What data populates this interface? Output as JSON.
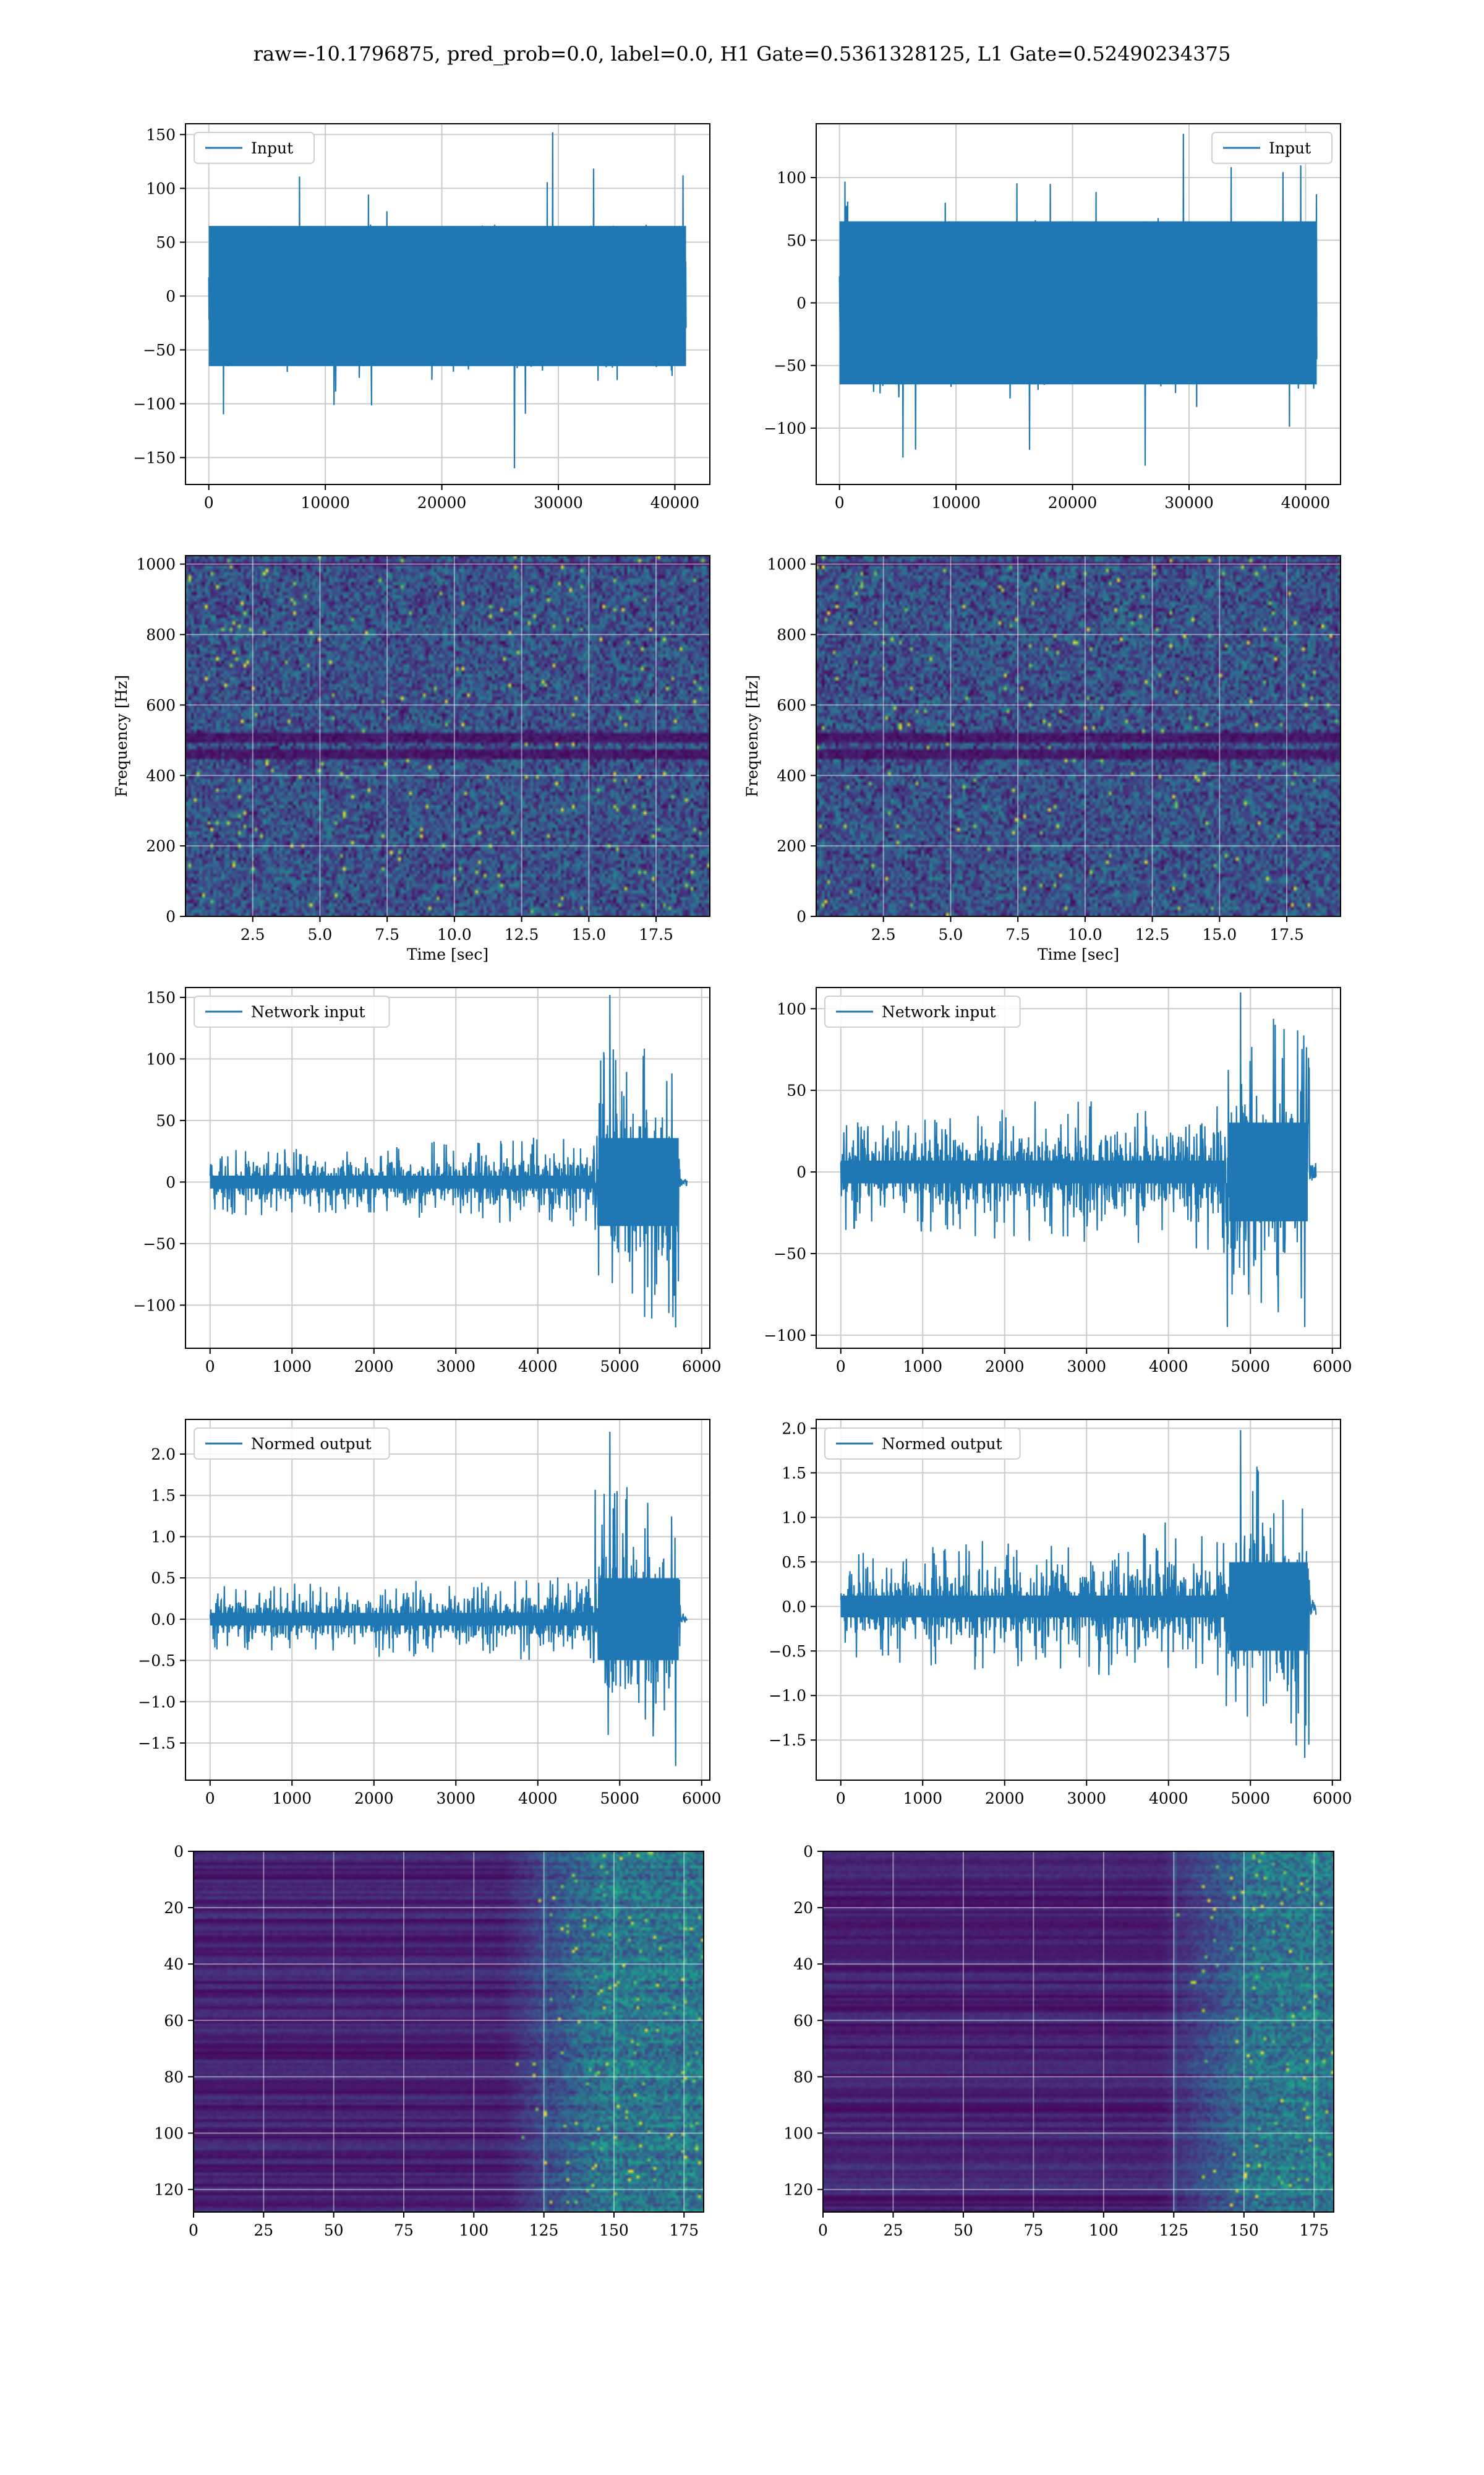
{
  "figure": {
    "title": "raw=-10.1796875, pred_prob=0.0, label=0.0, H1 Gate=0.5361328125, L1 Gate=0.52490234375"
  },
  "colors": {
    "series": "#1f77b4",
    "grid": "#cccccc",
    "viridis_dark": "#440154",
    "viridis_mid": "#21918c",
    "viridis_bright": "#fde725"
  },
  "chart_data": [
    {
      "type": "line",
      "row": 1,
      "col": 1,
      "series": [
        {
          "name": "Input"
        }
      ],
      "legend": "upper-left",
      "xlim": [
        -2000,
        43000
      ],
      "ylim": [
        -175,
        160
      ],
      "xticks": [
        0,
        10000,
        20000,
        30000,
        40000
      ],
      "yticks": [
        -150,
        -100,
        -50,
        0,
        50,
        100,
        150
      ],
      "signal": {
        "n": 40960,
        "band": [
          -70,
          70
        ],
        "max": 152,
        "min": -160,
        "envelope": "constant"
      },
      "grid": true,
      "xlabel": "",
      "ylabel": ""
    },
    {
      "type": "line",
      "row": 1,
      "col": 2,
      "series": [
        {
          "name": "Input"
        }
      ],
      "legend": "upper-right",
      "xlim": [
        -2000,
        43000
      ],
      "ylim": [
        -145,
        143
      ],
      "xticks": [
        0,
        10000,
        20000,
        30000,
        40000
      ],
      "yticks": [
        -100,
        -50,
        0,
        50,
        100
      ],
      "signal": {
        "n": 40960,
        "band": [
          -70,
          70
        ],
        "max": 135,
        "min": -130,
        "envelope": "constant"
      },
      "grid": true,
      "xlabel": "",
      "ylabel": ""
    },
    {
      "type": "heatmap",
      "row": 2,
      "col": 1,
      "xlim": [
        0,
        19.5
      ],
      "ylim": [
        0,
        1024
      ],
      "xticks": [
        2.5,
        5.0,
        7.5,
        10.0,
        12.5,
        15.0,
        17.5
      ],
      "yticks": [
        0,
        200,
        400,
        600,
        800,
        1000
      ],
      "xlabel": "Time [sec]",
      "ylabel": "Frequency [Hz]",
      "colormap": "viridis",
      "grid": true,
      "dark_bands_hz": [
        [
          455,
          480
        ],
        [
          500,
          525
        ],
        [
          1000,
          1010
        ]
      ]
    },
    {
      "type": "heatmap",
      "row": 2,
      "col": 2,
      "xlim": [
        0,
        19.5
      ],
      "ylim": [
        0,
        1024
      ],
      "xticks": [
        2.5,
        5.0,
        7.5,
        10.0,
        12.5,
        15.0,
        17.5
      ],
      "yticks": [
        0,
        200,
        400,
        600,
        800,
        1000
      ],
      "xlabel": "Time [sec]",
      "ylabel": "Frequency [Hz]",
      "colormap": "viridis",
      "grid": true,
      "dark_bands_hz": [
        [
          455,
          480
        ],
        [
          500,
          525
        ],
        [
          1000,
          1010
        ]
      ]
    },
    {
      "type": "line",
      "row": 3,
      "col": 1,
      "series": [
        {
          "name": "Network input"
        }
      ],
      "legend": "upper-left",
      "xlim": [
        -300,
        6100
      ],
      "ylim": [
        -135,
        158
      ],
      "xticks": [
        0,
        1000,
        2000,
        3000,
        4000,
        5000,
        6000
      ],
      "yticks": [
        -100,
        -50,
        0,
        50,
        100,
        150
      ],
      "signal": {
        "n": 5800,
        "burst_start": 4700,
        "burst_end": 5740,
        "base": 15,
        "burst": 65,
        "max": 152,
        "min": -118,
        "tail_end": 5820
      },
      "grid": true,
      "xlabel": "",
      "ylabel": ""
    },
    {
      "type": "line",
      "row": 3,
      "col": 2,
      "series": [
        {
          "name": "Network input"
        }
      ],
      "legend": "upper-left",
      "xlim": [
        -300,
        6100
      ],
      "ylim": [
        -108,
        113
      ],
      "xticks": [
        0,
        1000,
        2000,
        3000,
        4000,
        5000,
        6000
      ],
      "yticks": [
        -100,
        -50,
        0,
        50,
        100
      ],
      "signal": {
        "n": 5800,
        "burst_start": 4700,
        "burst_end": 5720,
        "base": 20,
        "burst": 55,
        "max": 110,
        "min": -95,
        "tail_end": 5800
      },
      "grid": true,
      "xlabel": "",
      "ylabel": ""
    },
    {
      "type": "line",
      "row": 4,
      "col": 1,
      "series": [
        {
          "name": "Normed output"
        }
      ],
      "legend": "upper-left",
      "xlim": [
        -300,
        6100
      ],
      "ylim": [
        -1.95,
        2.42
      ],
      "xticks": [
        0,
        1000,
        2000,
        3000,
        4000,
        5000,
        6000
      ],
      "yticks": [
        -1.5,
        -1.0,
        -0.5,
        0.0,
        0.5,
        1.0,
        1.5,
        2.0
      ],
      "signal": {
        "n": 5800,
        "burst_start": 4700,
        "burst_end": 5740,
        "base": 0.22,
        "burst": 0.9,
        "max": 2.27,
        "min": -1.78,
        "tail_end": 5820
      },
      "grid": true,
      "xlabel": "",
      "ylabel": ""
    },
    {
      "type": "line",
      "row": 4,
      "col": 2,
      "series": [
        {
          "name": "Normed output"
        }
      ],
      "legend": "upper-left",
      "xlim": [
        -300,
        6100
      ],
      "ylim": [
        -1.95,
        2.1
      ],
      "xticks": [
        0,
        1000,
        2000,
        3000,
        4000,
        5000,
        6000
      ],
      "yticks": [
        -1.5,
        -1.0,
        -0.5,
        0.0,
        0.5,
        1.0,
        1.5,
        2.0
      ],
      "signal": {
        "n": 5800,
        "burst_start": 4700,
        "burst_end": 5720,
        "base": 0.35,
        "burst": 0.9,
        "max": 1.98,
        "min": -1.7,
        "tail_end": 5800
      },
      "grid": true,
      "xlabel": "",
      "ylabel": ""
    },
    {
      "type": "heatmap",
      "row": 5,
      "col": 1,
      "xlim": [
        0,
        182
      ],
      "ylim": [
        128,
        0
      ],
      "xticks": [
        0,
        25,
        50,
        75,
        100,
        125,
        150,
        175
      ],
      "yticks": [
        0,
        20,
        40,
        60,
        80,
        100,
        120
      ],
      "colormap": "viridis",
      "grid": true,
      "activity_onset_col": 110,
      "xlabel": "",
      "ylabel": ""
    },
    {
      "type": "heatmap",
      "row": 5,
      "col": 2,
      "xlim": [
        0,
        182
      ],
      "ylim": [
        128,
        0
      ],
      "xticks": [
        0,
        25,
        50,
        75,
        100,
        125,
        150,
        175
      ],
      "yticks": [
        0,
        20,
        40,
        60,
        80,
        100,
        120
      ],
      "colormap": "viridis",
      "grid": true,
      "activity_onset_col": 120,
      "xlabel": "",
      "ylabel": ""
    }
  ]
}
